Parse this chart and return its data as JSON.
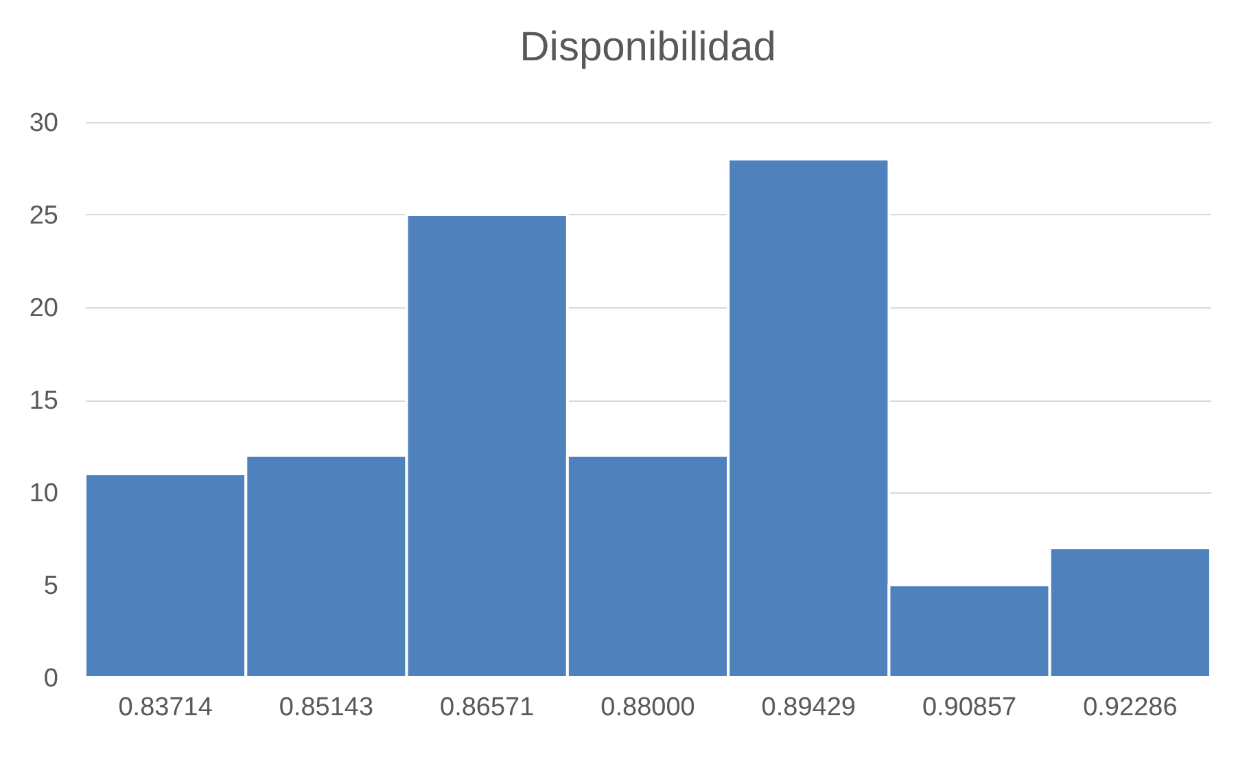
{
  "chart_data": {
    "type": "bar",
    "title": "Disponibilidad",
    "categories": [
      "0.83714",
      "0.85143",
      "0.86571",
      "0.88000",
      "0.89429",
      "0.90857",
      "0.92286"
    ],
    "values": [
      11,
      12,
      25,
      12,
      28,
      5,
      7
    ],
    "color": "#4f81bd",
    "ylim": [
      0,
      30
    ],
    "yticks": [
      0,
      5,
      10,
      15,
      20,
      25,
      30
    ],
    "grid": "y"
  }
}
